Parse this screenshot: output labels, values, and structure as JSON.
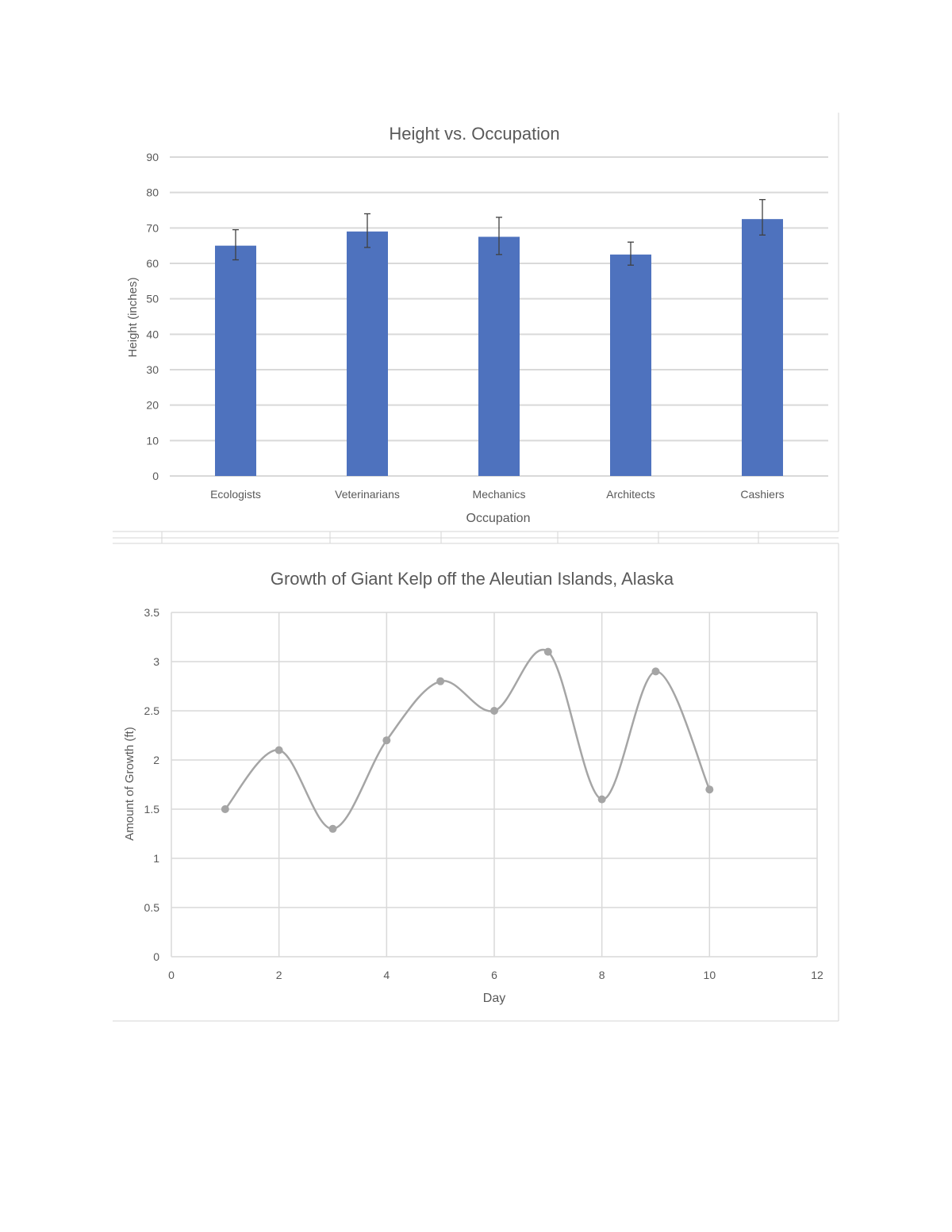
{
  "chart_data": [
    {
      "type": "bar",
      "title": "Height vs. Occupation",
      "xlabel": "Occupation",
      "ylabel": "Height (inches)",
      "categories": [
        "Ecologists",
        "Veterinarians",
        "Mechanics",
        "Architects",
        "Cashiers"
      ],
      "values": [
        65,
        69,
        67.5,
        62.5,
        72.5
      ],
      "error_low": [
        61,
        64.5,
        62.5,
        59.5,
        68
      ],
      "error_high": [
        69.5,
        74,
        73,
        66,
        78
      ],
      "ylim": [
        0,
        90
      ],
      "yticks": [
        0,
        10,
        20,
        30,
        40,
        50,
        60,
        70,
        80,
        90
      ],
      "grid": true,
      "color": "#4e72be"
    },
    {
      "type": "scatter",
      "title": "Growth of Giant Kelp off the Aleutian Islands, Alaska",
      "xlabel": "Day",
      "ylabel": "Amount of Growth (ft)",
      "x": [
        1,
        2,
        3,
        4,
        5,
        6,
        7,
        8,
        9,
        10
      ],
      "y": [
        1.5,
        2.1,
        1.3,
        2.2,
        2.8,
        2.5,
        3.1,
        1.6,
        2.9,
        1.7
      ],
      "xlim": [
        0,
        12
      ],
      "ylim": [
        0,
        3.5
      ],
      "xticks": [
        0,
        2,
        4,
        6,
        8,
        10,
        12
      ],
      "yticks": [
        0,
        0.5,
        1,
        1.5,
        2,
        2.5,
        3,
        3.5
      ],
      "smooth": true,
      "grid": true,
      "color": "#a5a5a5"
    }
  ]
}
